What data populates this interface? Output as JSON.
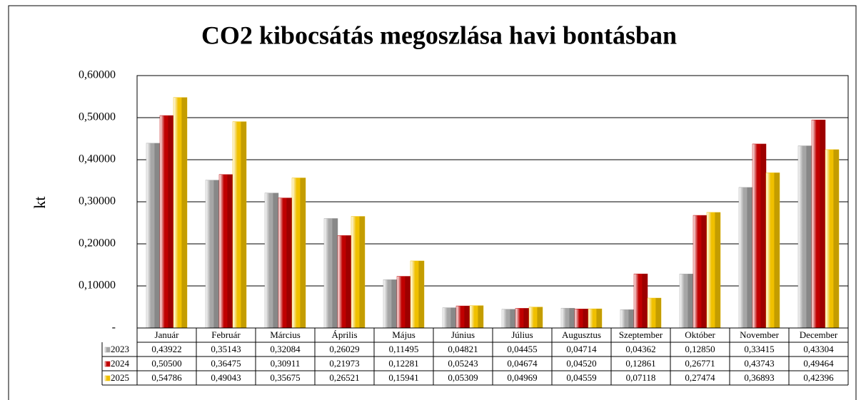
{
  "chart_data": {
    "type": "bar",
    "title": "CO2 kibocsátás megoszlása havi bontásban",
    "y_label": "kt",
    "categories": [
      "Január",
      "Február",
      "Március",
      "Április",
      "Május",
      "Június",
      "Július",
      "Augusztus",
      "Szeptember",
      "Október",
      "November",
      "December"
    ],
    "series": [
      {
        "name": "2023",
        "color": "#a6a6a6",
        "values": [
          0.43922,
          0.35143,
          0.32084,
          0.26029,
          0.11495,
          0.04821,
          0.04455,
          0.04714,
          0.04362,
          0.1285,
          0.33415,
          0.43304
        ],
        "value_labels": [
          "0,43922",
          "0,35143",
          "0,32084",
          "0,26029",
          "0,11495",
          "0,04821",
          "0,04455",
          "0,04714",
          "0,04362",
          "0,12850",
          "0,33415",
          "0,43304"
        ]
      },
      {
        "name": "2024",
        "color": "#c00000",
        "values": [
          0.505,
          0.36475,
          0.30911,
          0.21973,
          0.12281,
          0.05243,
          0.04674,
          0.0452,
          0.12861,
          0.26771,
          0.43743,
          0.49464
        ],
        "value_labels": [
          "0,50500",
          "0,36475",
          "0,30911",
          "0,21973",
          "0,12281",
          "0,05243",
          "0,04674",
          "0,04520",
          "0,12861",
          "0,26771",
          "0,43743",
          "0,49464"
        ]
      },
      {
        "name": "2025",
        "color": "#f0c000",
        "values": [
          0.54786,
          0.49043,
          0.35675,
          0.26521,
          0.15941,
          0.05309,
          0.04969,
          0.04559,
          0.07118,
          0.27474,
          0.36893,
          0.42396
        ],
        "value_labels": [
          "0,54786",
          "0,49043",
          "0,35675",
          "0,26521",
          "0,15941",
          "0,05309",
          "0,04969",
          "0,04559",
          "0,07118",
          "0,27474",
          "0,36893",
          "0,42396"
        ]
      }
    ],
    "ylim": [
      0,
      0.6
    ],
    "yticks": [
      {
        "value": 0,
        "label": "-"
      },
      {
        "value": 0.1,
        "label": "0,10000"
      },
      {
        "value": 0.2,
        "label": "0,20000"
      },
      {
        "value": 0.3,
        "label": "0,30000"
      },
      {
        "value": 0.4,
        "label": "0,40000"
      },
      {
        "value": 0.5,
        "label": "0,50000"
      },
      {
        "value": 0.6,
        "label": "0,60000"
      }
    ],
    "grid": true,
    "data_table": true
  }
}
